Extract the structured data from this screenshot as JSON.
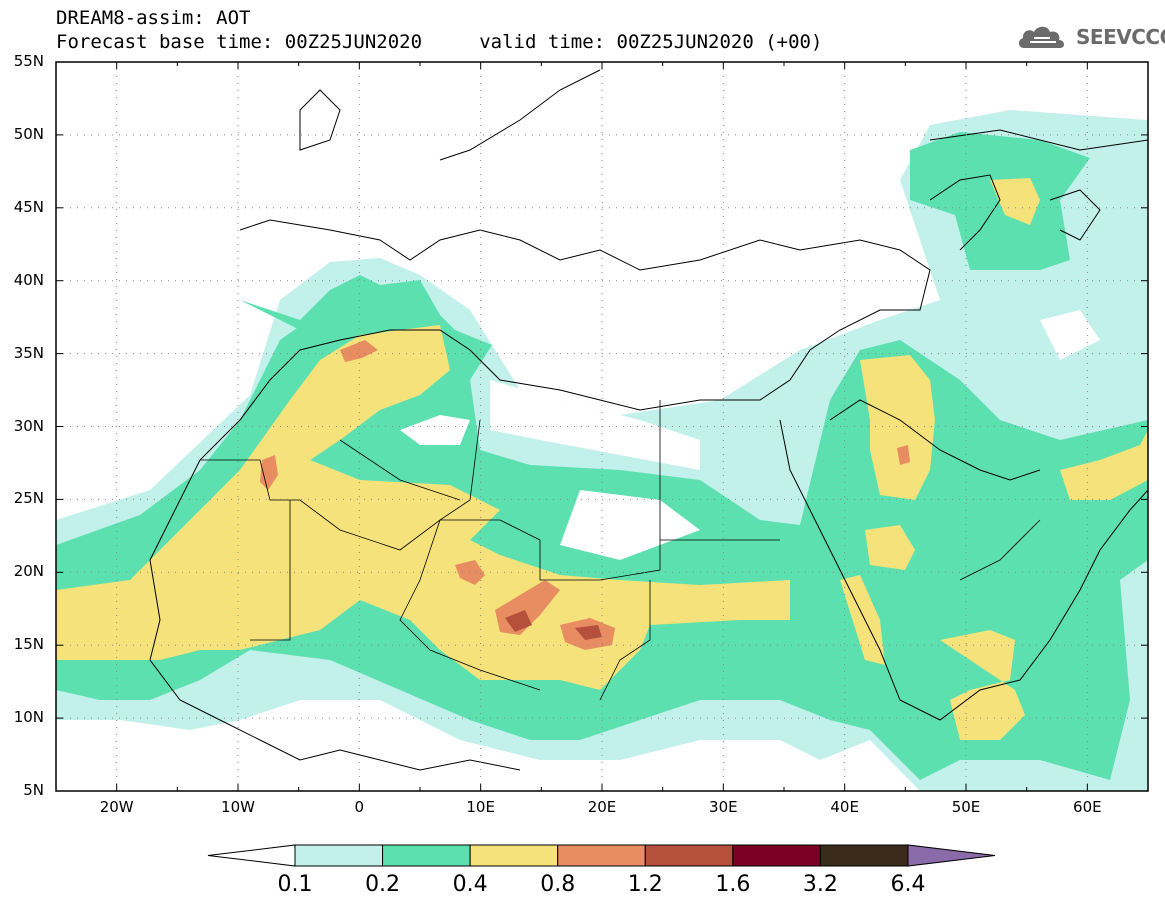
{
  "title": {
    "line1": "DREAM8-assim: AOT",
    "line2": "Forecast base time: 00Z25JUN2020     valid time: 00Z25JUN2020 (+00)"
  },
  "logo": {
    "text": "SEEVCCC",
    "icon": "cloud-icon"
  },
  "map": {
    "lon_range": [
      -25,
      65
    ],
    "lat_range": [
      5,
      55
    ],
    "grid": "dotted",
    "lat_ticks": [
      "55N",
      "50N",
      "45N",
      "40N",
      "35N",
      "30N",
      "25N",
      "20N",
      "15N",
      "10N",
      "5N"
    ],
    "lon_ticks": [
      "20W",
      "10W",
      "0",
      "10E",
      "20E",
      "30E",
      "40E",
      "50E",
      "60E"
    ]
  },
  "colorbar": {
    "levels": [
      "0.1",
      "0.2",
      "0.4",
      "0.8",
      "1.2",
      "1.6",
      "3.2",
      "6.4"
    ],
    "colors": [
      "#ffffff",
      "#c2f0ea",
      "#5de0b0",
      "#f5e27a",
      "#e88c62",
      "#b5503c",
      "#7a0026",
      "#3a2a1a",
      "#8a6aa8"
    ]
  }
}
